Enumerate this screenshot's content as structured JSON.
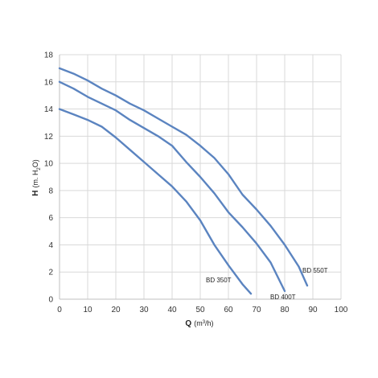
{
  "chart_data": {
    "type": "line",
    "title": "",
    "xlabel": {
      "main": "Q",
      "unit_prefix": "(m",
      "unit_sup": "3",
      "unit_suffix": "/h)"
    },
    "ylabel": {
      "main": "H",
      "unit_prefix": "(m. H",
      "unit_sub": "2",
      "unit_suffix": "O)"
    },
    "xlim": [
      0,
      100
    ],
    "ylim": [
      0,
      18
    ],
    "xticks": [
      0,
      10,
      20,
      30,
      40,
      50,
      60,
      70,
      80,
      90,
      100
    ],
    "yticks": [
      0,
      2,
      4,
      6,
      8,
      10,
      12,
      14,
      16,
      18
    ],
    "grid": true,
    "line_color": "#5b84c0",
    "series": [
      {
        "name": "BD 350T",
        "x": [
          0,
          5,
          10,
          15,
          20,
          25,
          30,
          35,
          40,
          45,
          50,
          55,
          60,
          65,
          68
        ],
        "y": [
          14,
          13.6,
          13.2,
          12.7,
          11.9,
          11.0,
          10.1,
          9.2,
          8.3,
          7.2,
          5.8,
          4.0,
          2.5,
          1.1,
          0.4
        ]
      },
      {
        "name": "BD 400T",
        "x": [
          0,
          5,
          10,
          15,
          20,
          25,
          30,
          35,
          40,
          45,
          50,
          55,
          60,
          65,
          70,
          75,
          80
        ],
        "y": [
          16,
          15.5,
          14.9,
          14.4,
          13.9,
          13.2,
          12.6,
          12.0,
          11.3,
          10.1,
          9.0,
          7.8,
          6.4,
          5.3,
          4.1,
          2.7,
          0.6
        ]
      },
      {
        "name": "BD 550T",
        "x": [
          0,
          5,
          10,
          15,
          20,
          25,
          30,
          35,
          40,
          45,
          50,
          55,
          60,
          65,
          70,
          75,
          80,
          85,
          88
        ],
        "y": [
          17,
          16.6,
          16.1,
          15.5,
          15.0,
          14.4,
          13.9,
          13.3,
          12.7,
          12.1,
          11.3,
          10.4,
          9.2,
          7.7,
          6.6,
          5.4,
          4.0,
          2.4,
          1.0
        ]
      }
    ]
  }
}
